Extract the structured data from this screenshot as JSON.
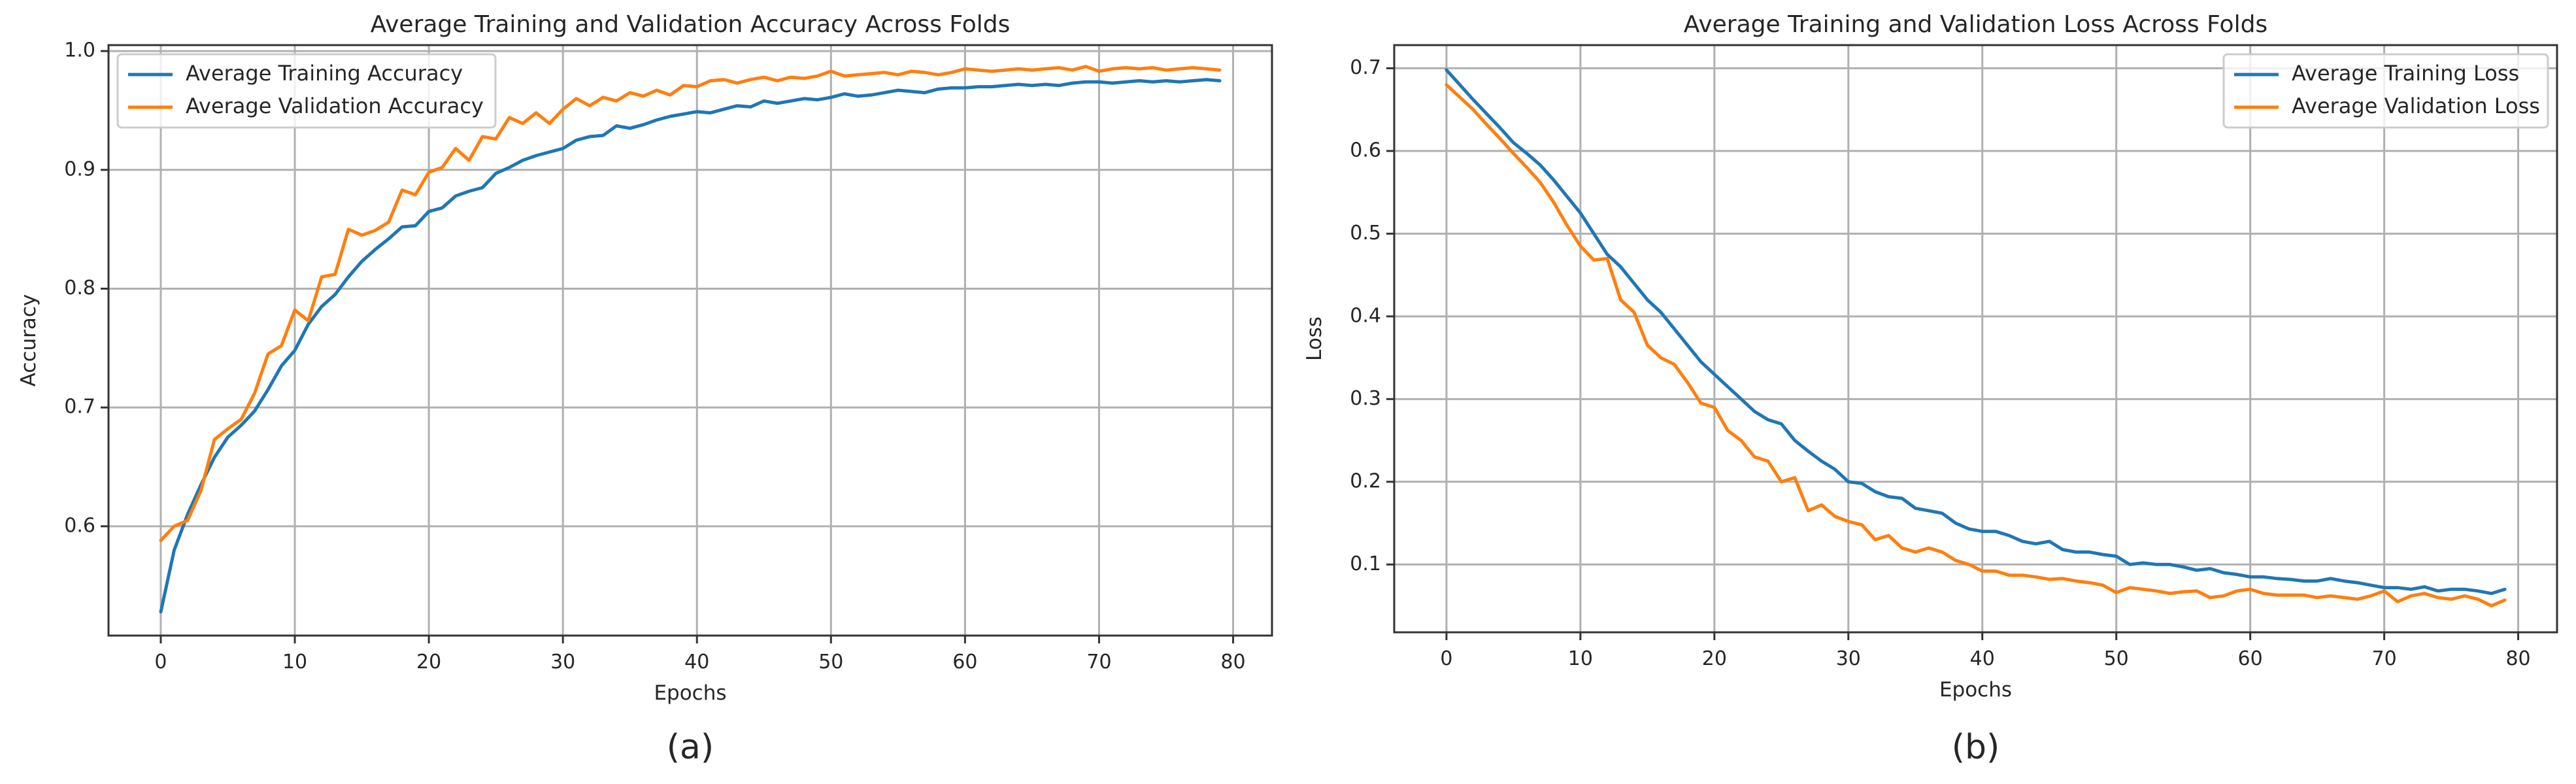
{
  "chart_data": [
    {
      "type": "line",
      "title": "Average Training and Validation Accuracy Across Folds",
      "xlabel": "Epochs",
      "ylabel": "Accuracy",
      "panel_label": "(a)",
      "xlim": [
        -3.9,
        82.9
      ],
      "ylim": [
        0.508,
        1.005
      ],
      "xticks": [
        0,
        10,
        20,
        30,
        40,
        50,
        60,
        70,
        80
      ],
      "yticks": [
        0.6,
        0.7,
        0.8,
        0.9,
        1.0
      ],
      "ytick_labels": [
        "0.6",
        "0.7",
        "0.8",
        "0.9",
        "1.0"
      ],
      "grid": true,
      "legend_position": "upper-left",
      "x": [
        0,
        1,
        2,
        3,
        4,
        5,
        6,
        7,
        8,
        9,
        10,
        11,
        12,
        13,
        14,
        15,
        16,
        17,
        18,
        19,
        20,
        21,
        22,
        23,
        24,
        25,
        26,
        27,
        28,
        29,
        30,
        31,
        32,
        33,
        34,
        35,
        36,
        37,
        38,
        39,
        40,
        41,
        42,
        43,
        44,
        45,
        46,
        47,
        48,
        49,
        50,
        51,
        52,
        53,
        54,
        55,
        56,
        57,
        58,
        59,
        60,
        61,
        62,
        63,
        64,
        65,
        66,
        67,
        68,
        69,
        70,
        71,
        72,
        73,
        74,
        75,
        76,
        77,
        78,
        79
      ],
      "series": [
        {
          "name": "Average Training Accuracy",
          "color": "#1f77b4",
          "values": [
            0.528,
            0.58,
            0.61,
            0.635,
            0.658,
            0.675,
            0.685,
            0.697,
            0.715,
            0.735,
            0.748,
            0.77,
            0.785,
            0.795,
            0.81,
            0.823,
            0.833,
            0.842,
            0.852,
            0.853,
            0.865,
            0.868,
            0.878,
            0.882,
            0.885,
            0.897,
            0.902,
            0.908,
            0.912,
            0.915,
            0.918,
            0.925,
            0.928,
            0.929,
            0.937,
            0.935,
            0.938,
            0.942,
            0.945,
            0.947,
            0.949,
            0.948,
            0.951,
            0.954,
            0.953,
            0.958,
            0.956,
            0.958,
            0.96,
            0.959,
            0.961,
            0.964,
            0.962,
            0.963,
            0.965,
            0.967,
            0.966,
            0.965,
            0.968,
            0.969,
            0.969,
            0.97,
            0.97,
            0.971,
            0.972,
            0.971,
            0.972,
            0.971,
            0.973,
            0.974,
            0.974,
            0.973,
            0.974,
            0.975,
            0.974,
            0.975,
            0.974,
            0.975,
            0.976,
            0.975
          ]
        },
        {
          "name": "Average Validation Accuracy",
          "color": "#ff7f0e",
          "values": [
            0.588,
            0.6,
            0.605,
            0.63,
            0.673,
            0.682,
            0.69,
            0.712,
            0.745,
            0.752,
            0.782,
            0.773,
            0.81,
            0.812,
            0.85,
            0.845,
            0.849,
            0.856,
            0.883,
            0.879,
            0.898,
            0.902,
            0.918,
            0.908,
            0.928,
            0.926,
            0.944,
            0.939,
            0.948,
            0.939,
            0.951,
            0.96,
            0.954,
            0.961,
            0.958,
            0.965,
            0.962,
            0.967,
            0.963,
            0.971,
            0.97,
            0.975,
            0.976,
            0.973,
            0.976,
            0.978,
            0.975,
            0.978,
            0.977,
            0.979,
            0.983,
            0.979,
            0.98,
            0.981,
            0.982,
            0.98,
            0.983,
            0.982,
            0.98,
            0.982,
            0.985,
            0.984,
            0.983,
            0.984,
            0.985,
            0.984,
            0.985,
            0.986,
            0.984,
            0.987,
            0.983,
            0.985,
            0.986,
            0.985,
            0.986,
            0.984,
            0.985,
            0.986,
            0.985,
            0.984
          ]
        }
      ]
    },
    {
      "type": "line",
      "title": "Average Training and Validation Loss Across Folds",
      "xlabel": "Epochs",
      "ylabel": "Loss",
      "panel_label": "(b)",
      "xlim": [
        -3.9,
        82.9
      ],
      "ylim": [
        0.018,
        0.728
      ],
      "xticks": [
        0,
        10,
        20,
        30,
        40,
        50,
        60,
        70,
        80
      ],
      "yticks": [
        0.1,
        0.2,
        0.3,
        0.4,
        0.5,
        0.6,
        0.7
      ],
      "ytick_labels": [
        "0.1",
        "0.2",
        "0.3",
        "0.4",
        "0.5",
        "0.6",
        "0.7"
      ],
      "grid": true,
      "legend_position": "upper-right",
      "x": [
        0,
        1,
        2,
        3,
        4,
        5,
        6,
        7,
        8,
        9,
        10,
        11,
        12,
        13,
        14,
        15,
        16,
        17,
        18,
        19,
        20,
        21,
        22,
        23,
        24,
        25,
        26,
        27,
        28,
        29,
        30,
        31,
        32,
        33,
        34,
        35,
        36,
        37,
        38,
        39,
        40,
        41,
        42,
        43,
        44,
        45,
        46,
        47,
        48,
        49,
        50,
        51,
        52,
        53,
        54,
        55,
        56,
        57,
        58,
        59,
        60,
        61,
        62,
        63,
        64,
        65,
        66,
        67,
        68,
        69,
        70,
        71,
        72,
        73,
        74,
        75,
        76,
        77,
        78,
        79
      ],
      "series": [
        {
          "name": "Average Training Loss",
          "color": "#1f77b4",
          "values": [
            0.698,
            0.68,
            0.662,
            0.645,
            0.628,
            0.61,
            0.597,
            0.583,
            0.565,
            0.545,
            0.525,
            0.5,
            0.475,
            0.46,
            0.44,
            0.42,
            0.405,
            0.385,
            0.365,
            0.345,
            0.33,
            0.315,
            0.3,
            0.285,
            0.275,
            0.27,
            0.25,
            0.237,
            0.225,
            0.215,
            0.2,
            0.198,
            0.188,
            0.182,
            0.18,
            0.168,
            0.165,
            0.162,
            0.15,
            0.143,
            0.14,
            0.14,
            0.135,
            0.128,
            0.125,
            0.128,
            0.118,
            0.115,
            0.115,
            0.112,
            0.11,
            0.1,
            0.102,
            0.1,
            0.1,
            0.097,
            0.093,
            0.095,
            0.09,
            0.088,
            0.085,
            0.085,
            0.083,
            0.082,
            0.08,
            0.08,
            0.083,
            0.08,
            0.078,
            0.075,
            0.072,
            0.072,
            0.07,
            0.073,
            0.068,
            0.07,
            0.07,
            0.068,
            0.065,
            0.07
          ]
        },
        {
          "name": "Average Validation Loss",
          "color": "#ff7f0e",
          "values": [
            0.68,
            0.665,
            0.65,
            0.632,
            0.615,
            0.597,
            0.58,
            0.562,
            0.538,
            0.51,
            0.485,
            0.468,
            0.47,
            0.42,
            0.405,
            0.365,
            0.35,
            0.342,
            0.32,
            0.295,
            0.29,
            0.262,
            0.25,
            0.23,
            0.225,
            0.2,
            0.205,
            0.165,
            0.172,
            0.158,
            0.152,
            0.148,
            0.13,
            0.135,
            0.12,
            0.115,
            0.12,
            0.115,
            0.105,
            0.1,
            0.092,
            0.092,
            0.087,
            0.087,
            0.085,
            0.082,
            0.083,
            0.08,
            0.078,
            0.075,
            0.066,
            0.072,
            0.07,
            0.068,
            0.065,
            0.067,
            0.068,
            0.06,
            0.062,
            0.068,
            0.07,
            0.065,
            0.063,
            0.063,
            0.063,
            0.06,
            0.062,
            0.06,
            0.058,
            0.062,
            0.068,
            0.055,
            0.062,
            0.065,
            0.06,
            0.058,
            0.062,
            0.058,
            0.05,
            0.057
          ]
        }
      ]
    }
  ]
}
